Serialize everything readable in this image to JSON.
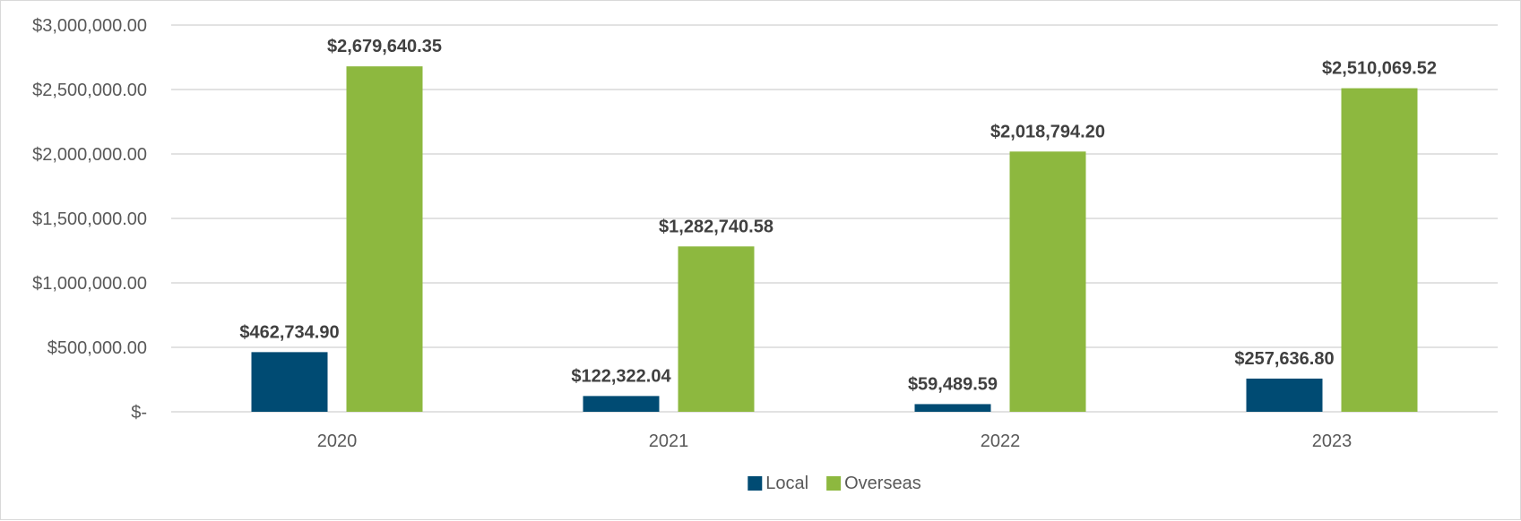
{
  "chart_data": {
    "type": "bar",
    "categories": [
      "2020",
      "2021",
      "2022",
      "2023"
    ],
    "series": [
      {
        "name": "Local",
        "color": "#004b73",
        "values": [
          462734.9,
          122322.04,
          59489.59,
          257636.8
        ],
        "labels": [
          "$462,734.90",
          "$122,322.04",
          "$59,489.59",
          "$257,636.80"
        ]
      },
      {
        "name": "Overseas",
        "color": "#8db83f",
        "values": [
          2679640.35,
          1282740.58,
          2018794.2,
          2510069.52
        ],
        "labels": [
          "$2,679,640.35",
          "$1,282,740.58",
          "$2,018,794.20",
          "$2,510,069.52"
        ]
      }
    ],
    "ylim": [
      0,
      3000000
    ],
    "yticks": [
      0,
      500000,
      1000000,
      1500000,
      2000000,
      2500000,
      3000000
    ],
    "ytick_labels": [
      "$-",
      "$500,000.00",
      "$1,000,000.00",
      "$1,500,000.00",
      "$2,000,000.00",
      "$2,500,000.00",
      "$3,000,000.00"
    ],
    "grid": true,
    "legend": "bottom-center",
    "title": "",
    "xlabel": "",
    "ylabel": ""
  }
}
